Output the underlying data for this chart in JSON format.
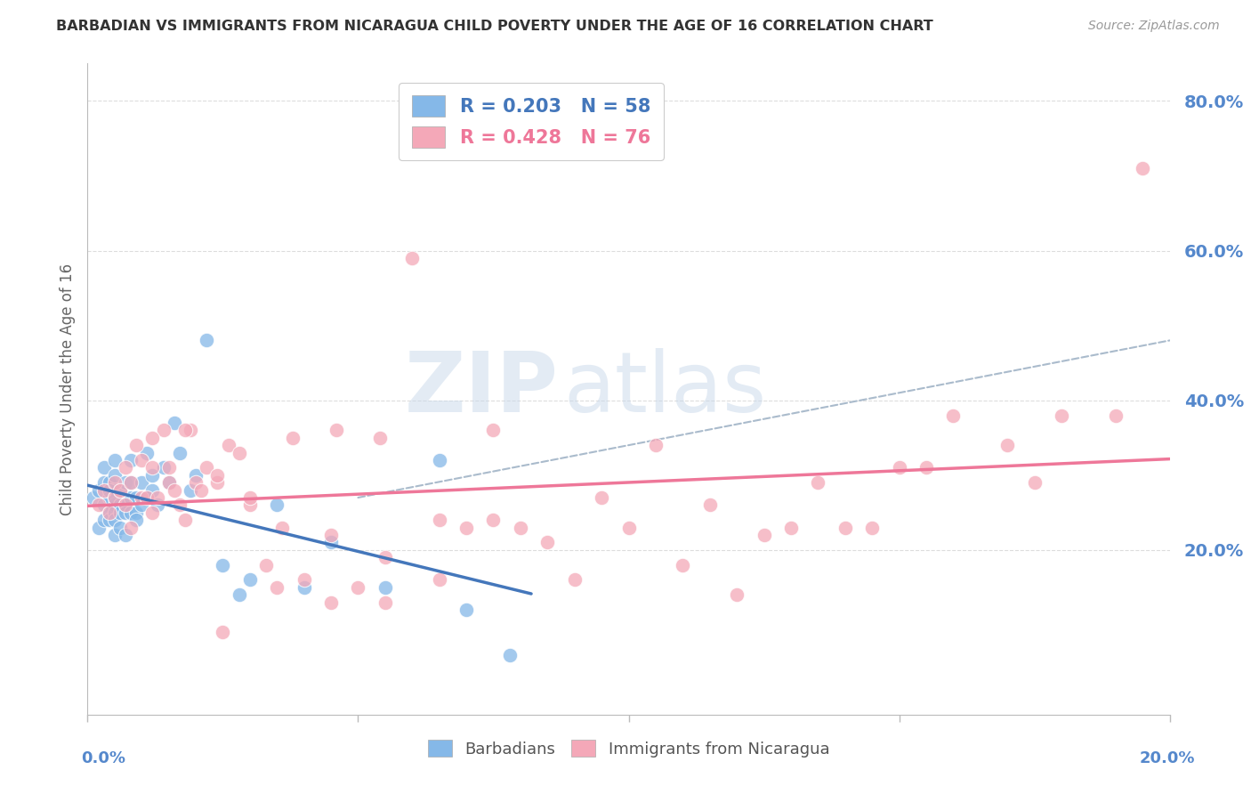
{
  "title": "BARBADIAN VS IMMIGRANTS FROM NICARAGUA CHILD POVERTY UNDER THE AGE OF 16 CORRELATION CHART",
  "source": "Source: ZipAtlas.com",
  "ylabel": "Child Poverty Under the Age of 16",
  "xlim": [
    0.0,
    0.2
  ],
  "ylim": [
    -0.02,
    0.85
  ],
  "blue_R": 0.203,
  "blue_N": 58,
  "pink_R": 0.428,
  "pink_N": 76,
  "blue_color": "#85B8E8",
  "pink_color": "#F4A8B8",
  "trend_blue_color": "#4477BB",
  "trend_pink_color": "#EE7799",
  "trend_gray_color": "#AABBCC",
  "watermark_zip": "ZIP",
  "watermark_atlas": "atlas",
  "legend_label_blue": "Barbadians",
  "legend_label_pink": "Immigrants from Nicaragua",
  "background_color": "#FFFFFF",
  "grid_color": "#DDDDDD",
  "axis_color": "#BBBBBB",
  "title_color": "#333333",
  "tick_color": "#5588CC",
  "ytick_vals": [
    0.2,
    0.4,
    0.6,
    0.8
  ],
  "ytick_labels": [
    "20.0%",
    "40.0%",
    "60.0%",
    "80.0%"
  ],
  "xtick_minor": [
    0.05,
    0.1,
    0.15
  ],
  "blue_x": [
    0.001,
    0.002,
    0.002,
    0.003,
    0.003,
    0.003,
    0.003,
    0.004,
    0.004,
    0.004,
    0.004,
    0.004,
    0.005,
    0.005,
    0.005,
    0.005,
    0.005,
    0.005,
    0.005,
    0.006,
    0.006,
    0.006,
    0.006,
    0.007,
    0.007,
    0.007,
    0.007,
    0.008,
    0.008,
    0.008,
    0.008,
    0.009,
    0.009,
    0.009,
    0.01,
    0.01,
    0.011,
    0.011,
    0.012,
    0.012,
    0.013,
    0.014,
    0.015,
    0.016,
    0.017,
    0.019,
    0.02,
    0.022,
    0.025,
    0.028,
    0.03,
    0.035,
    0.04,
    0.045,
    0.055,
    0.065,
    0.07,
    0.078
  ],
  "blue_y": [
    0.27,
    0.28,
    0.23,
    0.29,
    0.26,
    0.24,
    0.31,
    0.27,
    0.25,
    0.24,
    0.29,
    0.28,
    0.26,
    0.25,
    0.27,
    0.3,
    0.24,
    0.22,
    0.32,
    0.26,
    0.25,
    0.28,
    0.23,
    0.26,
    0.29,
    0.25,
    0.22,
    0.27,
    0.29,
    0.25,
    0.32,
    0.27,
    0.25,
    0.24,
    0.29,
    0.26,
    0.33,
    0.27,
    0.28,
    0.3,
    0.26,
    0.31,
    0.29,
    0.37,
    0.33,
    0.28,
    0.3,
    0.48,
    0.18,
    0.14,
    0.16,
    0.26,
    0.15,
    0.21,
    0.15,
    0.32,
    0.12,
    0.06
  ],
  "pink_x": [
    0.002,
    0.003,
    0.004,
    0.005,
    0.005,
    0.006,
    0.007,
    0.007,
    0.008,
    0.008,
    0.009,
    0.01,
    0.01,
    0.011,
    0.012,
    0.012,
    0.013,
    0.014,
    0.015,
    0.015,
    0.016,
    0.017,
    0.018,
    0.019,
    0.02,
    0.021,
    0.022,
    0.024,
    0.026,
    0.028,
    0.03,
    0.033,
    0.036,
    0.04,
    0.045,
    0.05,
    0.055,
    0.06,
    0.065,
    0.07,
    0.075,
    0.08,
    0.09,
    0.1,
    0.11,
    0.12,
    0.13,
    0.14,
    0.15,
    0.16,
    0.17,
    0.18,
    0.19,
    0.195,
    0.145,
    0.125,
    0.105,
    0.085,
    0.065,
    0.045,
    0.025,
    0.035,
    0.055,
    0.075,
    0.095,
    0.115,
    0.135,
    0.155,
    0.175,
    0.012,
    0.018,
    0.024,
    0.03,
    0.038,
    0.046,
    0.054
  ],
  "pink_y": [
    0.26,
    0.28,
    0.25,
    0.29,
    0.27,
    0.28,
    0.26,
    0.31,
    0.23,
    0.29,
    0.34,
    0.27,
    0.32,
    0.27,
    0.25,
    0.31,
    0.27,
    0.36,
    0.29,
    0.31,
    0.28,
    0.26,
    0.24,
    0.36,
    0.29,
    0.28,
    0.31,
    0.29,
    0.34,
    0.33,
    0.26,
    0.18,
    0.23,
    0.16,
    0.22,
    0.15,
    0.13,
    0.59,
    0.24,
    0.23,
    0.36,
    0.23,
    0.16,
    0.23,
    0.18,
    0.14,
    0.23,
    0.23,
    0.31,
    0.38,
    0.34,
    0.38,
    0.38,
    0.71,
    0.23,
    0.22,
    0.34,
    0.21,
    0.16,
    0.13,
    0.09,
    0.15,
    0.19,
    0.24,
    0.27,
    0.26,
    0.29,
    0.31,
    0.29,
    0.35,
    0.36,
    0.3,
    0.27,
    0.35,
    0.36,
    0.35
  ]
}
